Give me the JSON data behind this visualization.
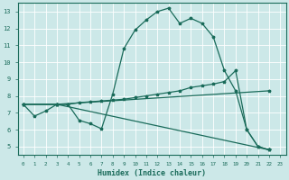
{
  "xlabel": "Humidex (Indice chaleur)",
  "xlim": [
    -0.5,
    23.5
  ],
  "ylim": [
    4.5,
    13.5
  ],
  "yticks": [
    5,
    6,
    7,
    8,
    9,
    10,
    11,
    12,
    13
  ],
  "xticks": [
    0,
    1,
    2,
    3,
    4,
    5,
    6,
    7,
    8,
    9,
    10,
    11,
    12,
    13,
    14,
    15,
    16,
    17,
    18,
    19,
    20,
    21,
    22,
    23
  ],
  "bg_color": "#cce8e8",
  "line_color": "#1a6b5a",
  "grid_color": "#ffffff",
  "line1_x": [
    0,
    1,
    2,
    3,
    4,
    5,
    6,
    7,
    8,
    9,
    10,
    11,
    12,
    13,
    14,
    15,
    16,
    17,
    18,
    19,
    20,
    21,
    22
  ],
  "line1_y": [
    7.5,
    6.8,
    7.1,
    7.5,
    7.5,
    6.55,
    6.35,
    6.05,
    8.1,
    10.8,
    11.9,
    12.5,
    13.0,
    13.2,
    12.3,
    12.6,
    12.3,
    11.5,
    9.5,
    8.3,
    6.0,
    5.0,
    4.8
  ],
  "line2_x": [
    0,
    3,
    4,
    5,
    6,
    7,
    8,
    9,
    10,
    11,
    12,
    13,
    14,
    15,
    16,
    17,
    18,
    19,
    20,
    21,
    22
  ],
  "line2_y": [
    7.5,
    7.5,
    7.5,
    7.6,
    7.65,
    7.7,
    7.75,
    7.8,
    7.9,
    8.0,
    8.1,
    8.2,
    8.3,
    8.5,
    8.6,
    8.7,
    8.85,
    9.5,
    6.0,
    5.0,
    4.8
  ],
  "line3_x": [
    0,
    3,
    22
  ],
  "line3_y": [
    7.5,
    7.5,
    8.3
  ],
  "line4_x": [
    0,
    3,
    22
  ],
  "line4_y": [
    7.5,
    7.5,
    4.8
  ]
}
